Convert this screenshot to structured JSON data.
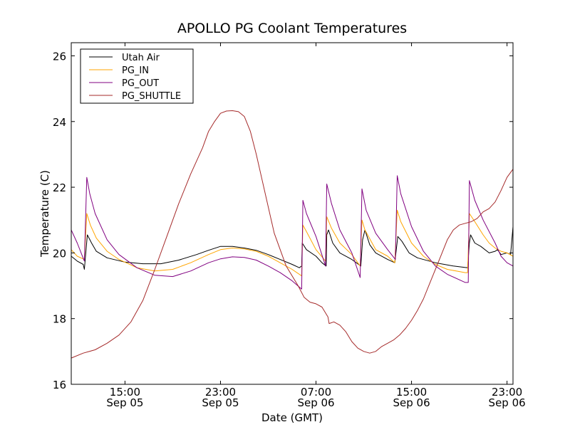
{
  "chart_data": {
    "type": "line",
    "title": "APOLLO PG Coolant Temperatures",
    "xlabel": "Date (GMT)",
    "ylabel": "Temperature (C)",
    "x_unit": "hours since Sep 05 00:00 GMT",
    "xlim": [
      10.5,
      47.5
    ],
    "ylim": [
      16,
      26.4
    ],
    "grid": false,
    "legend_position": "top-left",
    "y_ticks": [
      16,
      18,
      20,
      22,
      24,
      26
    ],
    "y_tick_labels": [
      "16",
      "18",
      "20",
      "22",
      "24",
      "26"
    ],
    "x_ticks": [
      15,
      23,
      31,
      39,
      47
    ],
    "x_tick_labels": [
      [
        "15:00",
        "Sep 05"
      ],
      [
        "23:00",
        "Sep 05"
      ],
      [
        "07:00",
        "Sep 06"
      ],
      [
        "15:00",
        "Sep 06"
      ],
      [
        "23:00",
        "Sep 06"
      ]
    ],
    "series": [
      {
        "name": "Utah Air",
        "color": "#000000",
        "points": [
          [
            10.5,
            19.9
          ],
          [
            11,
            19.75
          ],
          [
            11.5,
            19.65
          ],
          [
            11.6,
            19.5
          ],
          [
            11.85,
            20.55
          ],
          [
            12.2,
            20.3
          ],
          [
            12.6,
            20.05
          ],
          [
            13.5,
            19.85
          ],
          [
            15,
            19.72
          ],
          [
            16.5,
            19.67
          ],
          [
            18,
            19.67
          ],
          [
            19.5,
            19.78
          ],
          [
            21,
            19.95
          ],
          [
            22,
            20.08
          ],
          [
            23,
            20.2
          ],
          [
            24,
            20.2
          ],
          [
            25,
            20.15
          ],
          [
            26,
            20.08
          ],
          [
            27,
            19.95
          ],
          [
            28,
            19.8
          ],
          [
            29,
            19.65
          ],
          [
            29.6,
            19.55
          ],
          [
            29.8,
            19.6
          ],
          [
            29.85,
            20.3
          ],
          [
            30.2,
            20.1
          ],
          [
            31,
            19.9
          ],
          [
            31.5,
            19.7
          ],
          [
            31.85,
            19.6
          ],
          [
            31.9,
            20.55
          ],
          [
            32.05,
            20.7
          ],
          [
            32.4,
            20.3
          ],
          [
            33,
            20.0
          ],
          [
            34,
            19.8
          ],
          [
            34.75,
            19.6
          ],
          [
            34.9,
            20.4
          ],
          [
            35.1,
            20.7
          ],
          [
            35.5,
            20.25
          ],
          [
            36,
            20.0
          ],
          [
            37,
            19.8
          ],
          [
            37.6,
            19.7
          ],
          [
            37.85,
            20.5
          ],
          [
            38.2,
            20.35
          ],
          [
            38.8,
            20.0
          ],
          [
            39.5,
            19.85
          ],
          [
            41,
            19.7
          ],
          [
            42.5,
            19.6
          ],
          [
            43.7,
            19.55
          ],
          [
            43.85,
            20.3
          ],
          [
            43.95,
            20.55
          ],
          [
            44.3,
            20.3
          ],
          [
            44.8,
            20.2
          ],
          [
            45.5,
            20.0
          ],
          [
            46,
            20.05
          ],
          [
            46.2,
            20.1
          ],
          [
            46.5,
            19.95
          ],
          [
            47,
            20.0
          ],
          [
            47.3,
            19.95
          ],
          [
            47.5,
            20.8
          ]
        ]
      },
      {
        "name": "PG_IN",
        "color": "#ffa500",
        "points": [
          [
            10.5,
            20.1
          ],
          [
            11,
            19.9
          ],
          [
            11.6,
            19.8
          ],
          [
            11.8,
            21.2
          ],
          [
            12.1,
            20.85
          ],
          [
            12.6,
            20.45
          ],
          [
            13.5,
            20.05
          ],
          [
            14.5,
            19.8
          ],
          [
            16,
            19.55
          ],
          [
            17.5,
            19.45
          ],
          [
            19,
            19.5
          ],
          [
            20.5,
            19.7
          ],
          [
            22,
            19.95
          ],
          [
            23,
            20.1
          ],
          [
            24,
            20.15
          ],
          [
            25,
            20.12
          ],
          [
            26,
            20.05
          ],
          [
            27,
            19.9
          ],
          [
            28,
            19.7
          ],
          [
            29,
            19.5
          ],
          [
            29.8,
            19.3
          ],
          [
            29.9,
            20.85
          ],
          [
            30.2,
            20.65
          ],
          [
            31,
            20.1
          ],
          [
            31.8,
            19.75
          ],
          [
            31.9,
            21.1
          ],
          [
            32.3,
            20.75
          ],
          [
            33,
            20.3
          ],
          [
            34,
            19.95
          ],
          [
            34.7,
            19.6
          ],
          [
            34.85,
            21.0
          ],
          [
            35.1,
            20.7
          ],
          [
            36,
            20.1
          ],
          [
            37,
            19.9
          ],
          [
            37.6,
            19.7
          ],
          [
            37.8,
            21.3
          ],
          [
            38.1,
            20.95
          ],
          [
            39,
            20.3
          ],
          [
            40,
            19.9
          ],
          [
            41,
            19.65
          ],
          [
            42,
            19.5
          ],
          [
            43.5,
            19.4
          ],
          [
            43.7,
            19.4
          ],
          [
            43.85,
            21.2
          ],
          [
            44.3,
            20.95
          ],
          [
            45,
            20.55
          ],
          [
            45.5,
            20.3
          ],
          [
            46,
            20.15
          ],
          [
            46.5,
            20.05
          ],
          [
            47,
            20.0
          ],
          [
            47.5,
            19.9
          ]
        ]
      },
      {
        "name": "PG_OUT",
        "color": "#800080",
        "points": [
          [
            10.5,
            20.7
          ],
          [
            11,
            20.3
          ],
          [
            11.6,
            19.75
          ],
          [
            11.8,
            22.3
          ],
          [
            12.05,
            21.8
          ],
          [
            12.5,
            21.2
          ],
          [
            13.5,
            20.4
          ],
          [
            14.5,
            19.95
          ],
          [
            16,
            19.55
          ],
          [
            17.5,
            19.32
          ],
          [
            19,
            19.28
          ],
          [
            20.5,
            19.45
          ],
          [
            22,
            19.7
          ],
          [
            23,
            19.82
          ],
          [
            24,
            19.88
          ],
          [
            25,
            19.86
          ],
          [
            26,
            19.78
          ],
          [
            27,
            19.6
          ],
          [
            28,
            19.4
          ],
          [
            29,
            19.15
          ],
          [
            29.8,
            18.9
          ],
          [
            29.9,
            21.6
          ],
          [
            30.2,
            21.2
          ],
          [
            31,
            20.5
          ],
          [
            31.8,
            19.6
          ],
          [
            31.9,
            22.1
          ],
          [
            32.3,
            21.5
          ],
          [
            33,
            20.7
          ],
          [
            34,
            20.0
          ],
          [
            34.7,
            19.25
          ],
          [
            34.85,
            21.95
          ],
          [
            35.2,
            21.3
          ],
          [
            36,
            20.6
          ],
          [
            37,
            20.1
          ],
          [
            37.65,
            19.8
          ],
          [
            37.8,
            22.35
          ],
          [
            38.1,
            21.8
          ],
          [
            39,
            20.8
          ],
          [
            40,
            20.05
          ],
          [
            41,
            19.6
          ],
          [
            42,
            19.35
          ],
          [
            43.5,
            19.1
          ],
          [
            43.75,
            19.1
          ],
          [
            43.85,
            22.2
          ],
          [
            44.3,
            21.6
          ],
          [
            45,
            21.0
          ],
          [
            46,
            20.3
          ],
          [
            46.5,
            19.9
          ],
          [
            47,
            19.7
          ],
          [
            47.5,
            19.6
          ]
        ]
      },
      {
        "name": "PG_SHUTTLE",
        "color": "#a52a2a",
        "points": [
          [
            10.5,
            16.8
          ],
          [
            11.5,
            16.95
          ],
          [
            12.5,
            17.05
          ],
          [
            13.5,
            17.25
          ],
          [
            14.5,
            17.5
          ],
          [
            15.5,
            17.9
          ],
          [
            16.5,
            18.55
          ],
          [
            17.5,
            19.5
          ],
          [
            18.5,
            20.5
          ],
          [
            19.5,
            21.5
          ],
          [
            20.5,
            22.4
          ],
          [
            21.5,
            23.2
          ],
          [
            22,
            23.7
          ],
          [
            22.5,
            24.0
          ],
          [
            23,
            24.25
          ],
          [
            23.5,
            24.32
          ],
          [
            24,
            24.33
          ],
          [
            24.5,
            24.3
          ],
          [
            25,
            24.15
          ],
          [
            25.5,
            23.7
          ],
          [
            26,
            23.0
          ],
          [
            26.5,
            22.2
          ],
          [
            27.5,
            20.6
          ],
          [
            28.5,
            19.6
          ],
          [
            29.5,
            19.0
          ],
          [
            30,
            18.65
          ],
          [
            30.5,
            18.5
          ],
          [
            31,
            18.45
          ],
          [
            31.5,
            18.35
          ],
          [
            32,
            18.05
          ],
          [
            32.1,
            17.85
          ],
          [
            32.5,
            17.9
          ],
          [
            33,
            17.8
          ],
          [
            33.5,
            17.6
          ],
          [
            34,
            17.3
          ],
          [
            34.5,
            17.1
          ],
          [
            35,
            17.0
          ],
          [
            35.5,
            16.95
          ],
          [
            36,
            17.0
          ],
          [
            36.5,
            17.15
          ],
          [
            37,
            17.25
          ],
          [
            37.5,
            17.35
          ],
          [
            38,
            17.5
          ],
          [
            38.5,
            17.7
          ],
          [
            39,
            17.95
          ],
          [
            39.5,
            18.25
          ],
          [
            40,
            18.6
          ],
          [
            40.5,
            19.05
          ],
          [
            41,
            19.5
          ],
          [
            41.5,
            19.95
          ],
          [
            42,
            20.4
          ],
          [
            42.5,
            20.7
          ],
          [
            43,
            20.85
          ],
          [
            43.5,
            20.9
          ],
          [
            44,
            20.95
          ],
          [
            44.5,
            21.05
          ],
          [
            45,
            21.25
          ],
          [
            45.5,
            21.35
          ],
          [
            46,
            21.55
          ],
          [
            46.5,
            21.9
          ],
          [
            47,
            22.3
          ],
          [
            47.5,
            22.55
          ]
        ]
      }
    ]
  }
}
